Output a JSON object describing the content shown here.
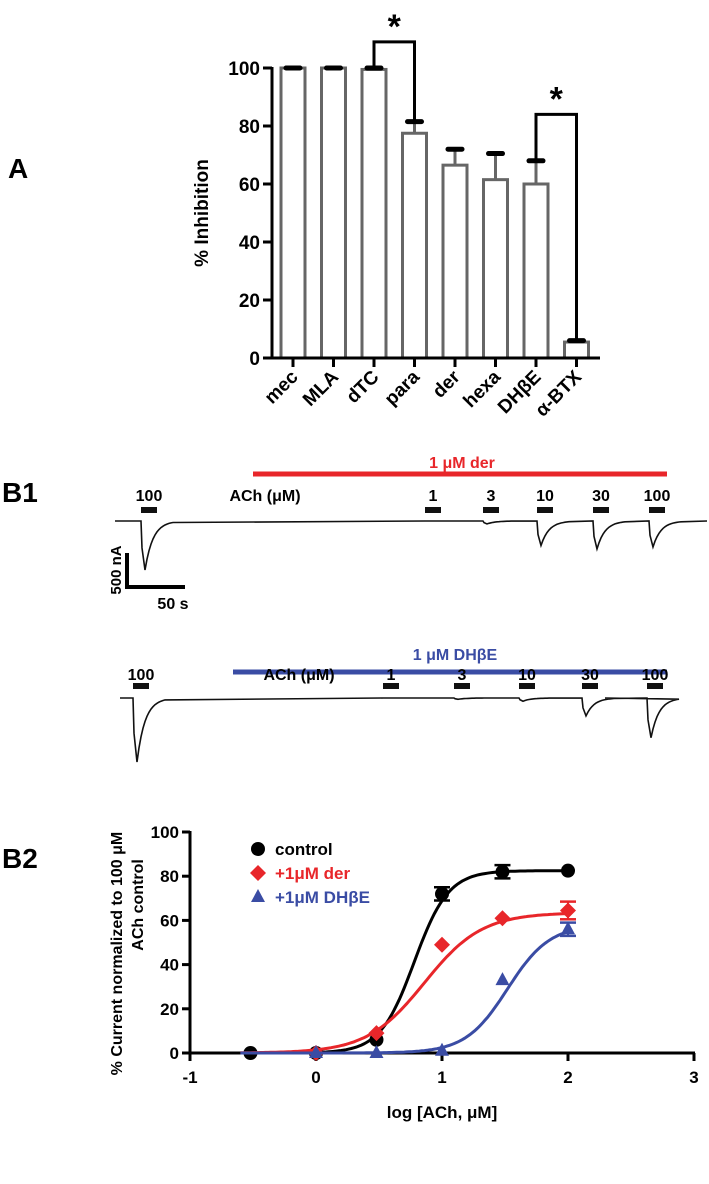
{
  "panel_labels": {
    "a": "A",
    "b1": "B1",
    "b2": "B2"
  },
  "chart_data": [
    {
      "type": "bar",
      "panel": "A",
      "ylabel": "% Inhibition",
      "ylim": [
        0,
        100
      ],
      "yticks": [
        0,
        20,
        40,
        60,
        80,
        100
      ],
      "categories": [
        "mec",
        "MLA",
        "dTC",
        "para",
        "der",
        "hexa",
        "DHβE",
        "α-BTX"
      ],
      "values": [
        100,
        100,
        99.5,
        77.5,
        66.5,
        61.5,
        60,
        5.5
      ],
      "errors": [
        0,
        0,
        0.5,
        4,
        5.5,
        9,
        8,
        0.5
      ],
      "significance": [
        {
          "from": "dTC",
          "to": "para",
          "label": "*",
          "level": 109
        },
        {
          "from": "DHβE",
          "to": "α-BTX",
          "label": "*",
          "level": 84
        }
      ],
      "colors": {
        "bar": "#666666",
        "axis": "#000000"
      }
    },
    {
      "type": "line",
      "panel": "B1",
      "traces": [
        {
          "drug_label": "1 μM der",
          "drug_color": "#e8262a",
          "ach_label": "ACh (μM)",
          "control_label": "100",
          "pulses": [
            "1",
            "3",
            "10",
            "30",
            "100"
          ],
          "relative_response": [
            0,
            0.06,
            0.5,
            0.57,
            0.53
          ]
        },
        {
          "drug_label": "1 μM DHβE",
          "drug_color": "#3a4ca4",
          "ach_label": "ACh (μM)",
          "control_label": "100",
          "pulses": [
            "1",
            "3",
            "10",
            "30",
            "100"
          ],
          "relative_response": [
            0,
            0.02,
            0.05,
            0.28,
            0.62
          ]
        }
      ],
      "scale_bar": {
        "current": "500 nA",
        "time": "50 s"
      }
    },
    {
      "type": "line",
      "panel": "B2",
      "xlabel": "log [ACh, μM]",
      "ylabel": [
        "% Current normalized to 100 μM",
        "ACh control"
      ],
      "xlim": [
        -1,
        3
      ],
      "ylim": [
        0,
        100
      ],
      "xticks": [
        -1,
        0,
        1,
        2,
        3
      ],
      "yticks": [
        0,
        20,
        40,
        60,
        80,
        100
      ],
      "legend_position": "top-left",
      "series": [
        {
          "name": "control",
          "marker": "circle",
          "color": "#000000",
          "x": [
            -0.52,
            0,
            0.48,
            1,
            1.48,
            2
          ],
          "y": [
            0,
            0,
            6,
            72,
            82,
            82.5
          ],
          "err": [
            0,
            0,
            0,
            3,
            3,
            0
          ],
          "fit": {
            "top": 82.5,
            "logEC50": 0.78,
            "hill": 3.2
          }
        },
        {
          "name": "+1μM der",
          "marker": "diamond",
          "color": "#e8262a",
          "x": [
            0,
            0.48,
            1,
            1.48,
            2
          ],
          "y": [
            0,
            9,
            49,
            61,
            64.5
          ],
          "err": [
            0,
            0,
            0,
            0,
            4
          ],
          "fit": {
            "top": 63.5,
            "logEC50": 0.86,
            "hill": 1.9
          }
        },
        {
          "name": "+1μM DHβE",
          "marker": "triangle",
          "color": "#3a4ca4",
          "x": [
            0,
            0.48,
            1,
            1.48,
            2
          ],
          "y": [
            0,
            0,
            1,
            33,
            56
          ],
          "err": [
            0,
            0,
            0,
            0,
            3
          ],
          "fit": {
            "top": 58,
            "logEC50": 1.52,
            "hill": 2.6
          }
        }
      ]
    }
  ]
}
